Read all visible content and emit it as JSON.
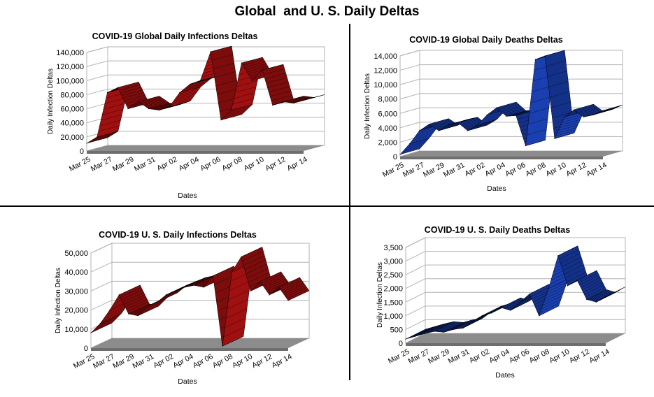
{
  "title": "Global  and U. S. Daily Deltas",
  "chart_data": [
    {
      "id": "gi",
      "type": "area",
      "title": "COVID-19 Global Daily Infections Deltas",
      "xlabel": "Dates",
      "ylabel": "Daily Infection Deltas",
      "ylim": [
        0,
        140000
      ],
      "yticks": [
        "0",
        "20,000",
        "40,000",
        "60,000",
        "80,000",
        "100,000",
        "120,000",
        "140,000"
      ],
      "categories": [
        "Mar 25",
        "Mar 27",
        "Mar 29",
        "Mar 31",
        "Apr 02",
        "Apr 04",
        "Apr 06",
        "Apr 08",
        "Apr 10",
        "Apr 12",
        "Apr 14"
      ],
      "x": [
        "Mar 25",
        "Mar 26",
        "Mar 27",
        "Mar 28",
        "Mar 29",
        "Mar 30",
        "Mar 31",
        "Apr 01",
        "Apr 02",
        "Apr 03",
        "Apr 04",
        "Apr 05",
        "Apr 06",
        "Apr 07",
        "Apr 08",
        "Apr 09",
        "Apr 10",
        "Apr 11",
        "Apr 12",
        "Apr 13",
        "Apr 14",
        "Apr 15"
      ],
      "values": [
        11000,
        20000,
        83000,
        90000,
        60000,
        70000,
        60000,
        58000,
        63000,
        83000,
        95000,
        100000,
        141000,
        44000,
        58000,
        125000,
        100000,
        115000,
        65000,
        70000,
        68000,
        72000
      ],
      "color": "#a01010",
      "grid": true
    },
    {
      "id": "gd",
      "type": "area",
      "title": "COVID-19 Global Daily Deaths Deltas",
      "xlabel": "Dates",
      "ylabel": "Daily Infection Deltas",
      "ylim": [
        0,
        14000
      ],
      "yticks": [
        "0",
        "2,000",
        "4,000",
        "6,000",
        "8,000",
        "10,000",
        "12,000",
        "14,000"
      ],
      "categories": [
        "Mar 25",
        "Mar 27",
        "Mar 29",
        "Mar 31",
        "Apr 02",
        "Apr 04",
        "Apr 06",
        "Apr 08",
        "Apr 10",
        "Apr 12",
        "Apr 14"
      ],
      "x": [
        "Mar 25",
        "Mar 26",
        "Mar 27",
        "Mar 28",
        "Mar 29",
        "Mar 30",
        "Mar 31",
        "Apr 01",
        "Apr 02",
        "Apr 03",
        "Apr 04",
        "Apr 05",
        "Apr 06",
        "Apr 07",
        "Apr 08",
        "Apr 09",
        "Apr 10",
        "Apr 11",
        "Apr 12",
        "Apr 13",
        "Apr 14",
        "Apr 15"
      ],
      "values": [
        300,
        1800,
        3600,
        4500,
        3600,
        4400,
        4700,
        3600,
        4400,
        5800,
        6800,
        5600,
        5700,
        1500,
        13500,
        14000,
        2500,
        5500,
        6500,
        5500,
        5800,
        6400
      ],
      "color": "#1a3fb0",
      "grid": true
    },
    {
      "id": "ui",
      "type": "area",
      "title": "COVID-19 U. S. Daily Infections Deltas",
      "xlabel": "Dates",
      "ylabel": "Daily Infection Deltas",
      "ylim": [
        0,
        50000
      ],
      "yticks": [
        "0",
        "10,000",
        "20,000",
        "30,000",
        "40,000",
        "50,000"
      ],
      "categories": [
        "Mar 25",
        "Mar 27",
        "Mar 29",
        "Mar 31",
        "Apr 02",
        "Apr 04",
        "Apr 06",
        "Apr 08",
        "Apr 10",
        "Apr 12",
        "Apr 14"
      ],
      "x": [
        "Mar 25",
        "Mar 26",
        "Mar 27",
        "Mar 28",
        "Mar 29",
        "Mar 30",
        "Mar 31",
        "Apr 01",
        "Apr 02",
        "Apr 03",
        "Apr 04",
        "Apr 05",
        "Apr 06",
        "Apr 07",
        "Apr 08",
        "Apr 09",
        "Apr 10",
        "Apr 11",
        "Apr 12",
        "Apr 13",
        "Apr 14",
        "Apr 15"
      ],
      "values": [
        8000,
        13000,
        20000,
        28000,
        18000,
        17000,
        22000,
        24000,
        28000,
        30000,
        32000,
        33000,
        32000,
        38000,
        1000,
        40000,
        48000,
        30000,
        35000,
        28000,
        32000,
        25000
      ],
      "color": "#a01010",
      "grid": true
    },
    {
      "id": "ud",
      "type": "area",
      "title": "COVID-19 U. S. Daily Deaths Deltas",
      "xlabel": "Dates",
      "ylabel": "Daily Infection Deltas",
      "ylim": [
        0,
        3500
      ],
      "yticks": [
        "0",
        "500",
        "1,000",
        "1,500",
        "2,000",
        "2,500",
        "3,000",
        "3,500"
      ],
      "categories": [
        "Mar 25",
        "Mar 27",
        "Mar 29",
        "Mar 31",
        "Apr 02",
        "Apr 04",
        "Apr 06",
        "Apr 08",
        "Apr 10",
        "Apr 12",
        "Apr 14"
      ],
      "x": [
        "Mar 25",
        "Mar 26",
        "Mar 27",
        "Mar 28",
        "Mar 29",
        "Mar 30",
        "Mar 31",
        "Apr 01",
        "Apr 02",
        "Apr 03",
        "Apr 04",
        "Apr 05",
        "Apr 06",
        "Apr 07",
        "Apr 08",
        "Apr 09",
        "Apr 10",
        "Apr 11",
        "Apr 12",
        "Apr 13",
        "Apr 14",
        "Apr 15"
      ],
      "values": [
        150,
        250,
        350,
        430,
        400,
        500,
        550,
        800,
        1000,
        1100,
        1300,
        1200,
        1500,
        1800,
        1000,
        2000,
        3200,
        2100,
        2300,
        1600,
        1500,
        1700
      ],
      "color": "#1a3fb0",
      "grid": true
    }
  ]
}
